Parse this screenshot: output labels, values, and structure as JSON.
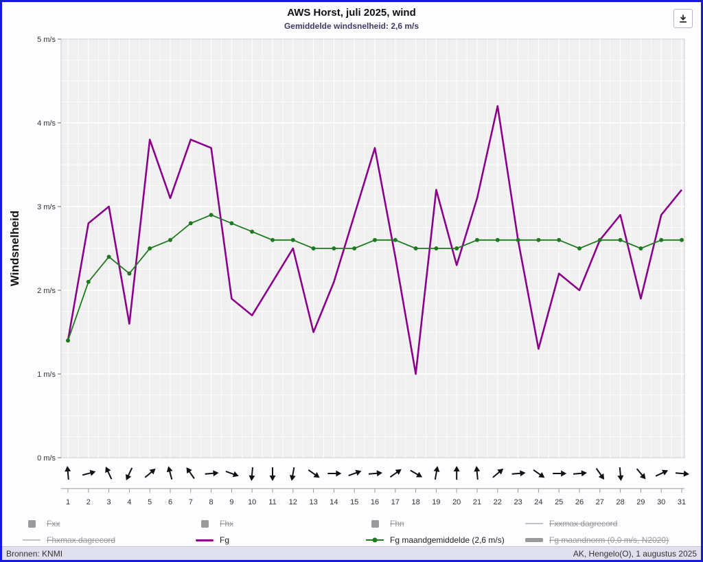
{
  "page": {
    "border_color": "#1a1ad6",
    "background": "#fdfdff",
    "plot_background": "#f0f0f0",
    "grid_color": "#ffffff"
  },
  "chart_data": {
    "type": "line",
    "title": "AWS Horst, juli 2025, wind",
    "subtitle": "Gemiddelde windsnelheid: 2,6 m/s",
    "ylabel": "Windsnelheid",
    "ylim": [
      0,
      5
    ],
    "ytick_labels": [
      "0 m/s",
      "1 m/s",
      "2 m/s",
      "3 m/s",
      "4 m/s",
      "5 m/s"
    ],
    "categories": [
      "1",
      "2",
      "3",
      "4",
      "5",
      "6",
      "7",
      "8",
      "9",
      "10",
      "11",
      "12",
      "13",
      "14",
      "15",
      "16",
      "17",
      "18",
      "19",
      "20",
      "21",
      "22",
      "23",
      "24",
      "25",
      "26",
      "27",
      "28",
      "29",
      "30",
      "31"
    ],
    "series": [
      {
        "name": "Fg",
        "color": "#8B008B",
        "values": [
          1.4,
          2.8,
          3.0,
          1.6,
          3.8,
          3.1,
          3.8,
          3.7,
          1.9,
          1.7,
          2.1,
          2.5,
          1.5,
          2.1,
          2.9,
          3.7,
          2.4,
          1.0,
          3.2,
          2.3,
          3.1,
          4.2,
          2.6,
          1.3,
          2.2,
          2.0,
          2.6,
          2.9,
          1.9,
          2.9,
          3.2
        ]
      },
      {
        "name": "Fg maandgemiddelde (2,6 m/s)",
        "color": "#1f7a1f",
        "marker": true,
        "values": [
          1.4,
          2.1,
          2.4,
          2.2,
          2.5,
          2.6,
          2.8,
          2.9,
          2.8,
          2.7,
          2.6,
          2.6,
          2.5,
          2.5,
          2.5,
          2.6,
          2.6,
          2.5,
          2.5,
          2.5,
          2.6,
          2.6,
          2.6,
          2.6,
          2.6,
          2.5,
          2.6,
          2.6,
          2.5,
          2.6,
          2.6
        ]
      }
    ],
    "wind_direction_arrows_deg": [
      -95,
      -15,
      -115,
      115,
      -40,
      -105,
      -125,
      -5,
      20,
      95,
      90,
      100,
      35,
      0,
      -20,
      -5,
      -35,
      30,
      -80,
      -90,
      -95,
      -40,
      -5,
      35,
      0,
      -5,
      55,
      85,
      50,
      -25,
      5
    ],
    "legend_position": "bottom",
    "grid": true
  },
  "legend": {
    "items": [
      {
        "label": "Fxx",
        "icon": "square",
        "disabled": true
      },
      {
        "label": "Fhx",
        "icon": "square",
        "disabled": true
      },
      {
        "label": "Fhn",
        "icon": "square",
        "disabled": true
      },
      {
        "label": "Fxxmax dagrecord",
        "icon": "line",
        "disabled": true
      },
      {
        "label": "Fhxmax dagrecord",
        "icon": "line",
        "disabled": true
      },
      {
        "label": "Fg",
        "icon": "cline",
        "color": "#8B008B",
        "disabled": false
      },
      {
        "label": "Fg maandgemiddelde (2,6 m/s)",
        "icon": "line-dot",
        "color": "#1f7a1f",
        "disabled": false
      },
      {
        "label": "Fg maandnorm (0,0 m/s, N2020)",
        "icon": "thick-line",
        "disabled": true
      }
    ]
  },
  "footer": {
    "left": "Bronnen: KNMI",
    "right": "AK, Hengelo(O), 1 augustus 2025"
  }
}
